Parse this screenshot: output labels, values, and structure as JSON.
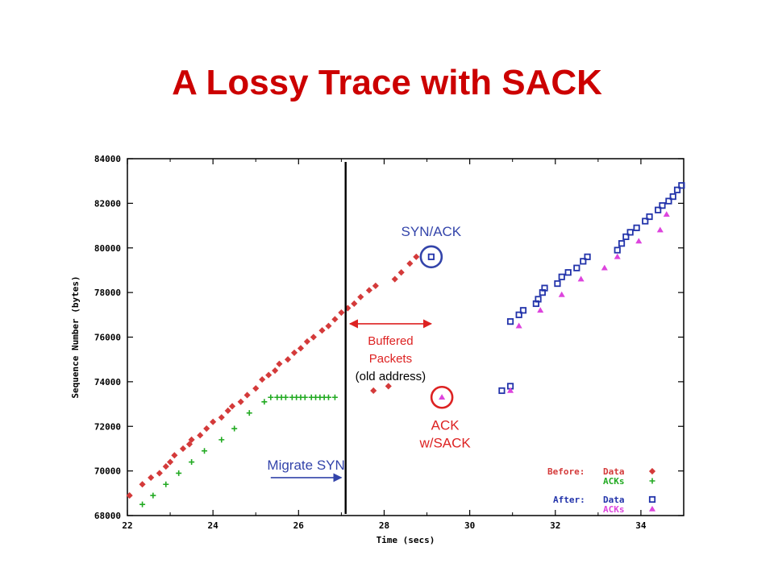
{
  "slide": {
    "title": "A Lossy Trace with SACK"
  },
  "colors": {
    "title": "#cc0000",
    "before_data": "#d43a3a",
    "before_acks": "#22aa22",
    "after_data": "#2233aa",
    "after_acks": "#dd44dd",
    "annotation_blue": "#3344aa",
    "annotation_red": "#dd2222"
  },
  "chart_data": {
    "type": "scatter",
    "xlabel": "Time (secs)",
    "ylabel": "Sequence Number (bytes)",
    "xlim": [
      22,
      35
    ],
    "ylim": [
      68000,
      84000
    ],
    "x_ticks": [
      22,
      24,
      26,
      28,
      30,
      32,
      34
    ],
    "y_ticks": [
      68000,
      70000,
      72000,
      74000,
      76000,
      78000,
      80000,
      82000,
      84000
    ],
    "grid": false,
    "legend": {
      "placement": "bottom-right",
      "groups": [
        {
          "label": "Before:",
          "entries": [
            {
              "name": "Data",
              "series": "before_data"
            },
            {
              "name": "ACKs",
              "series": "before_acks"
            }
          ]
        },
        {
          "label": "After:",
          "entries": [
            {
              "name": "Data",
              "series": "after_data"
            },
            {
              "name": "ACKs",
              "series": "after_acks"
            }
          ]
        }
      ]
    },
    "series": [
      {
        "key": "before_data",
        "name": "Before: Data",
        "marker": "diamond",
        "color": "#d43a3a",
        "points": [
          [
            22.05,
            68900
          ],
          [
            22.35,
            69400
          ],
          [
            22.55,
            69700
          ],
          [
            22.75,
            69900
          ],
          [
            22.9,
            70200
          ],
          [
            23.0,
            70400
          ],
          [
            23.1,
            70700
          ],
          [
            23.3,
            71000
          ],
          [
            23.45,
            71200
          ],
          [
            23.5,
            71400
          ],
          [
            23.7,
            71600
          ],
          [
            23.85,
            71900
          ],
          [
            24.0,
            72200
          ],
          [
            24.2,
            72400
          ],
          [
            24.35,
            72700
          ],
          [
            24.45,
            72900
          ],
          [
            24.65,
            73100
          ],
          [
            24.8,
            73400
          ],
          [
            25.0,
            73700
          ],
          [
            25.15,
            74100
          ],
          [
            25.3,
            74300
          ],
          [
            25.45,
            74500
          ],
          [
            25.55,
            74800
          ],
          [
            25.75,
            75000
          ],
          [
            25.9,
            75300
          ],
          [
            26.05,
            75500
          ],
          [
            26.2,
            75800
          ],
          [
            26.35,
            76000
          ],
          [
            26.55,
            76300
          ],
          [
            26.7,
            76500
          ],
          [
            26.85,
            76800
          ],
          [
            27.0,
            77100
          ],
          [
            27.15,
            77300
          ],
          [
            27.3,
            77500
          ],
          [
            27.45,
            77800
          ],
          [
            27.65,
            78100
          ],
          [
            27.8,
            78300
          ],
          [
            28.25,
            78600
          ],
          [
            28.4,
            78900
          ],
          [
            28.6,
            79300
          ],
          [
            28.75,
            79600
          ],
          [
            27.75,
            73600
          ],
          [
            28.1,
            73800
          ]
        ]
      },
      {
        "key": "before_acks",
        "name": "Before: ACKs",
        "marker": "plus",
        "color": "#22aa22",
        "points": [
          [
            22.35,
            68500
          ],
          [
            22.6,
            68900
          ],
          [
            22.9,
            69400
          ],
          [
            23.2,
            69900
          ],
          [
            23.5,
            70400
          ],
          [
            23.8,
            70900
          ],
          [
            24.2,
            71400
          ],
          [
            24.5,
            71900
          ],
          [
            24.85,
            72600
          ],
          [
            25.2,
            73100
          ],
          [
            25.35,
            73300
          ],
          [
            25.5,
            73300
          ],
          [
            25.6,
            73300
          ],
          [
            25.7,
            73300
          ],
          [
            25.85,
            73300
          ],
          [
            25.95,
            73300
          ],
          [
            26.05,
            73300
          ],
          [
            26.15,
            73300
          ],
          [
            26.3,
            73300
          ],
          [
            26.4,
            73300
          ],
          [
            26.5,
            73300
          ],
          [
            26.6,
            73300
          ],
          [
            26.7,
            73300
          ],
          [
            26.85,
            73300
          ]
        ]
      },
      {
        "key": "after_data",
        "name": "After: Data",
        "marker": "square",
        "color": "#2233aa",
        "points": [
          [
            29.1,
            79600
          ],
          [
            30.75,
            73600
          ],
          [
            30.95,
            73800
          ],
          [
            30.95,
            76700
          ],
          [
            31.15,
            77000
          ],
          [
            31.25,
            77200
          ],
          [
            31.55,
            77500
          ],
          [
            31.6,
            77700
          ],
          [
            31.7,
            78000
          ],
          [
            31.75,
            78200
          ],
          [
            32.05,
            78400
          ],
          [
            32.15,
            78700
          ],
          [
            32.3,
            78900
          ],
          [
            32.5,
            79100
          ],
          [
            32.65,
            79400
          ],
          [
            32.75,
            79600
          ],
          [
            33.45,
            79900
          ],
          [
            33.55,
            80200
          ],
          [
            33.65,
            80500
          ],
          [
            33.75,
            80700
          ],
          [
            33.9,
            80900
          ],
          [
            34.1,
            81200
          ],
          [
            34.2,
            81400
          ],
          [
            34.4,
            81700
          ],
          [
            34.5,
            81900
          ],
          [
            34.65,
            82100
          ],
          [
            34.75,
            82300
          ],
          [
            34.85,
            82600
          ],
          [
            34.95,
            82800
          ]
        ]
      },
      {
        "key": "after_acks",
        "name": "After: ACKs",
        "marker": "triangle",
        "color": "#dd44dd",
        "points": [
          [
            29.35,
            73300
          ],
          [
            30.95,
            73600
          ],
          [
            31.15,
            76500
          ],
          [
            31.65,
            77200
          ],
          [
            32.15,
            77900
          ],
          [
            32.6,
            78600
          ],
          [
            33.15,
            79100
          ],
          [
            33.45,
            79600
          ],
          [
            33.95,
            80300
          ],
          [
            34.45,
            80800
          ],
          [
            34.6,
            81500
          ]
        ]
      }
    ],
    "annotations": [
      {
        "key": "syn_ack",
        "text": "SYN/ACK",
        "color": "#3344aa",
        "target_x": 29.1,
        "target_y": 79600
      },
      {
        "key": "ack_sack",
        "lines": [
          "ACK",
          "w/SACK"
        ],
        "color": "#dd2222",
        "target_x": 29.35,
        "target_y": 73300
      },
      {
        "key": "buffered",
        "lines": [
          "Buffered",
          "Packets",
          "(old address)"
        ],
        "color": "#dd2222",
        "x_from": 27.2,
        "x_to": 29.1,
        "y": 76600
      },
      {
        "key": "migrate_syn",
        "text": "Migrate SYN",
        "color": "#3344aa",
        "x_from": 25.35,
        "x_to": 27.0,
        "y": 69700
      },
      {
        "key": "migration_line",
        "x": 27.1
      }
    ]
  }
}
